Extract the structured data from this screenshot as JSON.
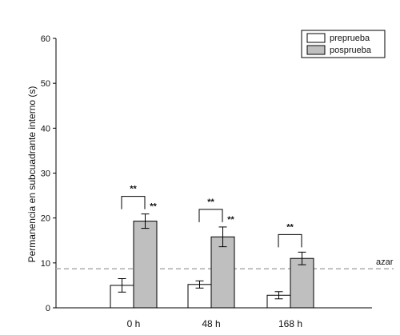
{
  "chart_data": {
    "type": "bar",
    "title": "",
    "xlabel": "",
    "ylabel": "Permanencia en subcuadrante interno (s)",
    "ylim": [
      0,
      60
    ],
    "yticks": [
      "0",
      "10",
      "20",
      "30",
      "40",
      "50",
      "60"
    ],
    "grid": false,
    "legend": "top-right",
    "categories": [
      "0 h",
      "48 h",
      "168 h"
    ],
    "series": [
      {
        "name": "preprueba",
        "color": "#ffffff",
        "values": [
          5.0,
          5.2,
          2.8
        ],
        "errors": [
          1.5,
          0.8,
          0.8
        ]
      },
      {
        "name": "posprueba",
        "color": "#bfbfbf",
        "values": [
          19.3,
          15.8,
          11.0
        ],
        "errors": [
          1.6,
          2.2,
          1.4
        ]
      }
    ],
    "reference_line": {
      "label": "azar",
      "value": 8.7,
      "color": "#aaaaaa"
    },
    "significance": [
      {
        "label": "**",
        "between_series": true
      },
      {
        "label": "**",
        "between_series": true
      },
      {
        "label": "**",
        "between_series": true
      }
    ],
    "posprueba_marks": [
      "**",
      "**",
      ""
    ]
  }
}
